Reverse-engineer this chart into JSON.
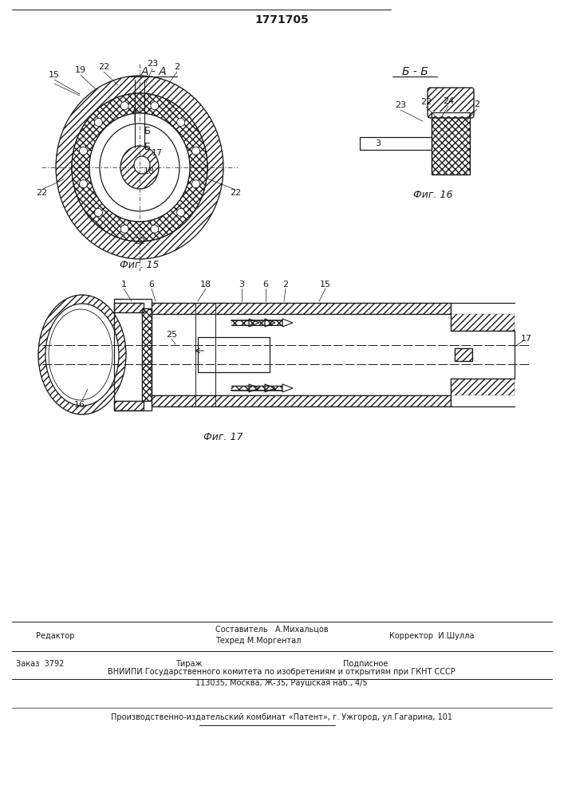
{
  "patent_number": "1771705",
  "fig15_label": "Фиг. 15",
  "fig16_label": "Фиг. 16",
  "fig17_label": "Фиг. 17",
  "section_aa": "A - A",
  "section_bb": "Б - Б",
  "editor_line": "Редактор",
  "compiler_line": "Составитель   А.Михальцов",
  "techred_line": "Техред М.Моргентал",
  "corrector_line": "Корректор  И.Шулла",
  "order_line": "Заказ  3792",
  "tirazh_line": "Тираж",
  "podpisnoe_line": "Подписное",
  "vniip_line": "ВНИИПИ Государственного комитета по изобретениям и открытиям при ГКНТ СССР",
  "address_line": "113035, Москва, Ж-35, Раушская наб., 4/5",
  "publisher_line": "Производственно-издательский комбинат «Патент», г. Ужгород, ул.Гагарина, 101",
  "bg_color": "#ffffff",
  "line_color": "#1a1a1a",
  "section_label_b": "Б"
}
